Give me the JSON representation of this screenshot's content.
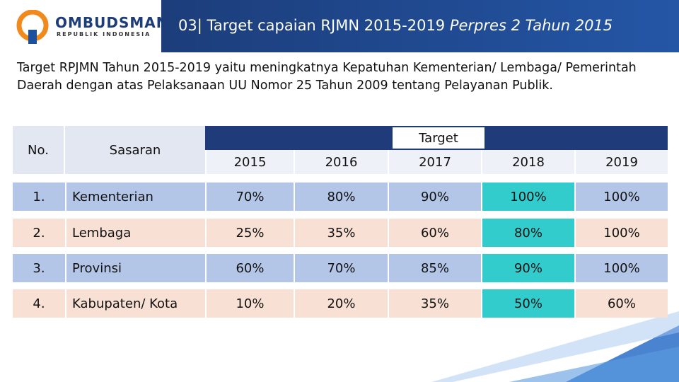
{
  "header": {
    "logo": {
      "name": "OMBUDSMAN",
      "subtitle": "REPUBLIK INDONESIA"
    },
    "title": "03| Target capaian RJMN 2015-2019",
    "title_italic": "Perpres 2 Tahun 2015"
  },
  "intro": "Target RPJMN Tahun 2015-2019 yaitu meningkatnya Kepatuhan Kementerian/ Lembaga/ Pemerintah Daerah dengan atas Pelaksanaan UU Nomor 25 Tahun 2009 tentang Pelayanan Publik.",
  "table": {
    "columns": [
      "No.",
      "Sasaran"
    ],
    "group_header": "Target",
    "years": [
      "2015",
      "2016",
      "2017",
      "2018",
      "2019"
    ],
    "rows": [
      [
        "1.",
        "Kementerian",
        "70%",
        "80%",
        "90%",
        "100%",
        "100%"
      ],
      [
        "2.",
        "Lembaga",
        "25%",
        "35%",
        "60%",
        "80%",
        "100%"
      ],
      [
        "3.",
        "Provinsi",
        "60%",
        "70%",
        "85%",
        "90%",
        "100%"
      ],
      [
        "4.",
        "Kabupaten/ Kota",
        "10%",
        "20%",
        "35%",
        "50%",
        "60%"
      ]
    ]
  }
}
